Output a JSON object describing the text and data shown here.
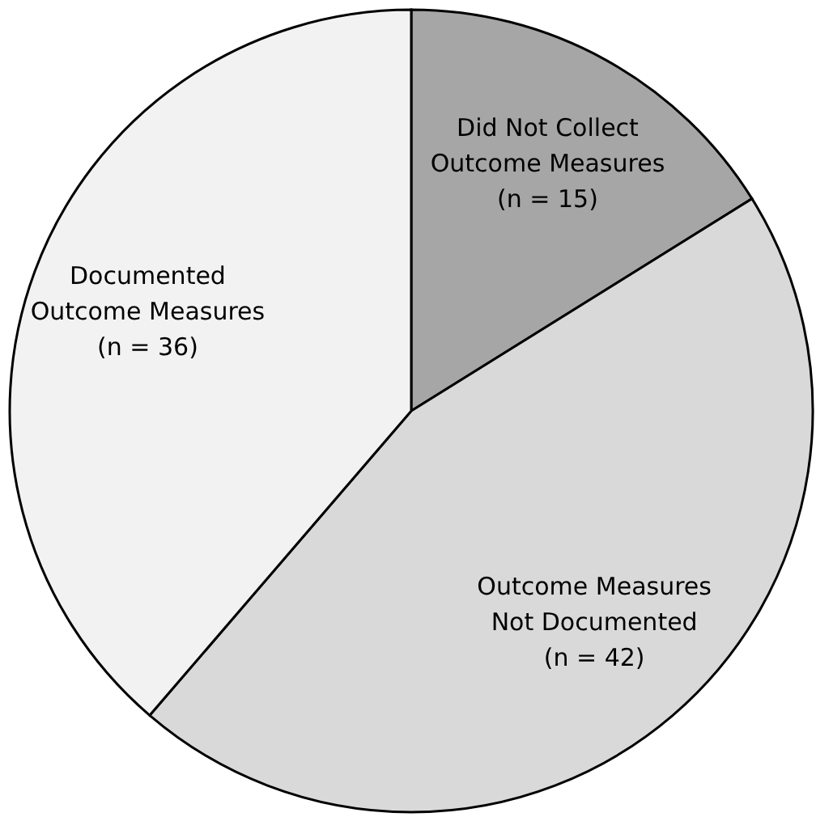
{
  "chart_data": {
    "type": "pie",
    "categories": [
      "Did Not Collect Outcome Measures",
      "Outcome Measures Not Documented",
      "Documented Outcome Measures"
    ],
    "values": [
      15,
      42,
      36
    ],
    "value_labels": [
      "(n = 15)",
      "(n = 42)",
      "(n = 36)"
    ],
    "colors": [
      "#a6a6a6",
      "#d9d9d9",
      "#f2f2f2"
    ]
  }
}
